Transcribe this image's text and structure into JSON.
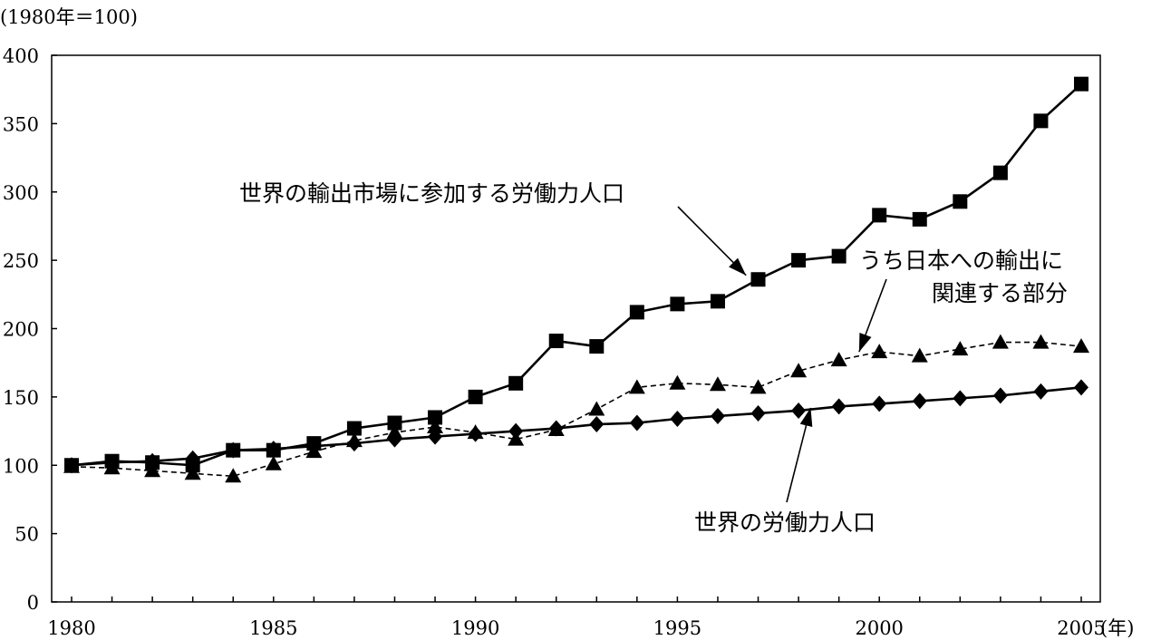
{
  "chart_data": {
    "type": "line",
    "y_unit_label": "(1980年＝100)",
    "x_unit_label": "(年)",
    "ylim": [
      0,
      400
    ],
    "yticks": [
      0,
      50,
      100,
      150,
      200,
      250,
      300,
      350,
      400
    ],
    "xlim": [
      1980,
      2005
    ],
    "xticks": [
      1980,
      1985,
      1990,
      1995,
      2000,
      2005
    ],
    "grid": false,
    "x": [
      1980,
      1981,
      1982,
      1983,
      1984,
      1985,
      1986,
      1987,
      1988,
      1989,
      1990,
      1991,
      1992,
      1993,
      1994,
      1995,
      1996,
      1997,
      1998,
      1999,
      2000,
      2001,
      2002,
      2003,
      2004,
      2005
    ],
    "series": [
      {
        "name": "世界の輸出市場に参加する労働力人口",
        "marker": "square",
        "line": "solid",
        "values": [
          100,
          103,
          102,
          100,
          111,
          111,
          116,
          127,
          131,
          135,
          150,
          160,
          191,
          187,
          212,
          218,
          220,
          236,
          250,
          253,
          283,
          280,
          293,
          314,
          352,
          379
        ]
      },
      {
        "name": "うち日本への輸出に関連する部分",
        "marker": "triangle",
        "line": "dashed",
        "values": [
          99,
          98,
          96,
          94,
          92,
          101,
          110,
          118,
          124,
          128,
          124,
          119,
          126,
          141,
          157,
          160,
          159,
          157,
          169,
          177,
          183,
          180,
          185,
          190,
          190,
          187
        ]
      },
      {
        "name": "世界の労働力人口",
        "marker": "diamond",
        "line": "solid",
        "values": [
          100,
          102,
          103,
          105,
          111,
          112,
          114,
          116,
          119,
          121,
          123,
          125,
          127,
          130,
          131,
          134,
          136,
          138,
          140,
          143,
          145,
          147,
          149,
          151,
          154,
          157
        ]
      }
    ],
    "annotations": [
      {
        "lines": [
          "世界の輸出市場に参加する労働力人口"
        ],
        "series_index": 0,
        "arrow_to": [
          1996.7,
          239
        ]
      },
      {
        "lines": [
          "うち日本への輸出に",
          "関連する部分"
        ],
        "series_index": 1,
        "arrow_to": [
          1999.5,
          183
        ]
      },
      {
        "lines": [
          "世界の労働力人口"
        ],
        "series_index": 2,
        "arrow_to": [
          1998.3,
          142
        ]
      }
    ]
  }
}
